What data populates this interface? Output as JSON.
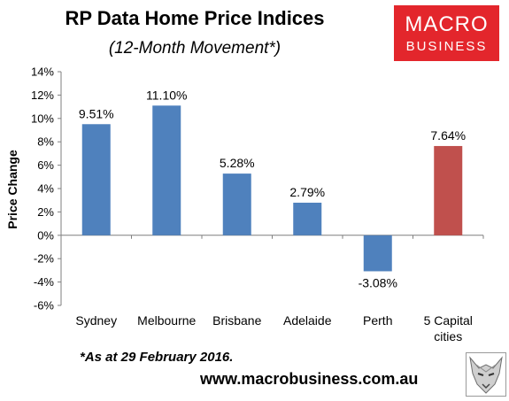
{
  "colors": {
    "bar_city": "#4f81bd",
    "bar_capital": "#c0504d",
    "logo_bg": "#e3262c",
    "axis": "#7f7f7f"
  },
  "logo": {
    "line1": "MACRO",
    "line2": "BUSINESS"
  },
  "footnote": "*As at 29 February 2016.",
  "website": "www.macrobusiness.com.au",
  "watermark_icon": "wolf-icon",
  "chart_data": {
    "type": "bar",
    "title": "RP Data Home Price Indices",
    "subtitle": "(12-Month Movement*)",
    "ylabel": "Price Change",
    "xlabel": "",
    "ylim": [
      -6,
      14
    ],
    "yticks": [
      14,
      12,
      10,
      8,
      6,
      4,
      2,
      0,
      -2,
      -4,
      -6
    ],
    "ytick_labels": [
      "14%",
      "12%",
      "10%",
      "8%",
      "6%",
      "4%",
      "2%",
      "0%",
      "-2%",
      "-4%",
      "-6%"
    ],
    "categories": [
      "Sydney",
      "Melbourne",
      "Brisbane",
      "Adelaide",
      "Perth",
      "5 Capital cities"
    ],
    "category_lines": [
      [
        "Sydney"
      ],
      [
        "Melbourne"
      ],
      [
        "Brisbane"
      ],
      [
        "Adelaide"
      ],
      [
        "Perth"
      ],
      [
        "5 Capital",
        "cities"
      ]
    ],
    "values": [
      9.51,
      11.1,
      5.28,
      2.79,
      -3.08,
      7.64
    ],
    "data_labels": [
      "9.51%",
      "11.10%",
      "5.28%",
      "2.79%",
      "-3.08%",
      "7.64%"
    ],
    "highlight_index": 5,
    "grid": false,
    "legend": "none"
  }
}
